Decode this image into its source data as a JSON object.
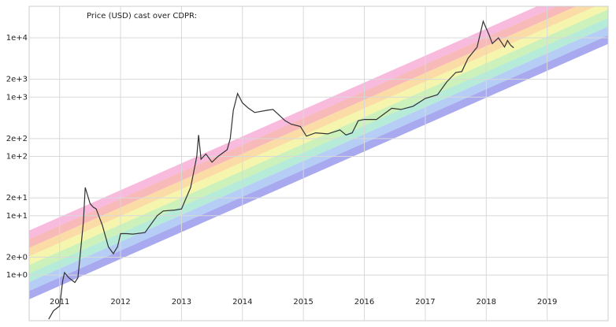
{
  "chart_data": {
    "type": "line",
    "title": "Price (USD) cast over CDPR:",
    "log_y": true,
    "grid": true,
    "xlim": [
      2010.5,
      2020.0
    ],
    "ylim": [
      0.17,
      34000
    ],
    "xticks": [
      2011,
      2012,
      2013,
      2014,
      2015,
      2016,
      2017,
      2018,
      2019
    ],
    "yticks": [
      {
        "value": 1,
        "label": "1e+0"
      },
      {
        "value": 2,
        "label": "2e+0"
      },
      {
        "value": 10,
        "label": "1e+1"
      },
      {
        "value": 20,
        "label": "2e+1"
      },
      {
        "value": 100,
        "label": "1e+2"
      },
      {
        "value": 200,
        "label": "2e+2"
      },
      {
        "value": 1000,
        "label": "1e+3"
      },
      {
        "value": 2000,
        "label": "2e+3"
      },
      {
        "value": 10000,
        "label": "1e+4"
      }
    ],
    "rainbow": {
      "x": [
        2010.5,
        2020.0
      ],
      "edges": [
        [
          0.39,
          7900
        ],
        [
          0.54,
          11000
        ],
        [
          0.76,
          15500
        ],
        [
          1.06,
          21600
        ],
        [
          1.48,
          30200
        ],
        [
          2.07,
          42200
        ],
        [
          2.88,
          58900
        ],
        [
          4.03,
          82200
        ],
        [
          5.62,
          115000
        ]
      ],
      "colors": [
        "#6f6fe6",
        "#86aef0",
        "#86dcc0",
        "#ace88c",
        "#eeee78",
        "#f8c46c",
        "#f48a8a",
        "#f48cc6"
      ]
    },
    "series": [
      {
        "color": "#333333",
        "x": [
          2010.82,
          2010.9,
          2011.0,
          2011.05,
          2011.08,
          2011.15,
          2011.25,
          2011.3,
          2011.35,
          2011.39,
          2011.42,
          2011.5,
          2011.55,
          2011.6,
          2011.7,
          2011.8,
          2011.88,
          2011.95,
          2012.0,
          2012.1,
          2012.2,
          2012.4,
          2012.6,
          2012.7,
          2012.9,
          2013.0,
          2013.15,
          2013.25,
          2013.28,
          2013.32,
          2013.4,
          2013.5,
          2013.6,
          2013.75,
          2013.8,
          2013.85,
          2013.92,
          2014.0,
          2014.1,
          2014.2,
          2014.4,
          2014.5,
          2014.6,
          2014.7,
          2014.8,
          2014.95,
          2015.05,
          2015.2,
          2015.4,
          2015.6,
          2015.7,
          2015.8,
          2015.9,
          2016.0,
          2016.2,
          2016.45,
          2016.6,
          2016.8,
          2017.0,
          2017.2,
          2017.35,
          2017.5,
          2017.6,
          2017.7,
          2017.85,
          2017.95,
          2018.05,
          2018.1,
          2018.2,
          2018.3,
          2018.35,
          2018.4,
          2018.45
        ],
        "values": [
          0.18,
          0.25,
          0.3,
          0.8,
          1.1,
          0.9,
          0.75,
          0.9,
          3,
          8,
          30,
          16,
          14,
          13,
          7,
          3,
          2.3,
          3,
          5,
          5,
          4.9,
          5.2,
          10,
          12,
          12.5,
          13,
          30,
          100,
          230,
          90,
          110,
          80,
          100,
          130,
          200,
          600,
          1150,
          800,
          650,
          550,
          600,
          620,
          500,
          400,
          350,
          320,
          220,
          250,
          240,
          280,
          230,
          250,
          400,
          420,
          420,
          650,
          620,
          700,
          950,
          1100,
          1800,
          2600,
          2700,
          4500,
          7000,
          19000,
          11000,
          8000,
          10000,
          7000,
          9000,
          7500,
          6800
        ]
      }
    ]
  }
}
